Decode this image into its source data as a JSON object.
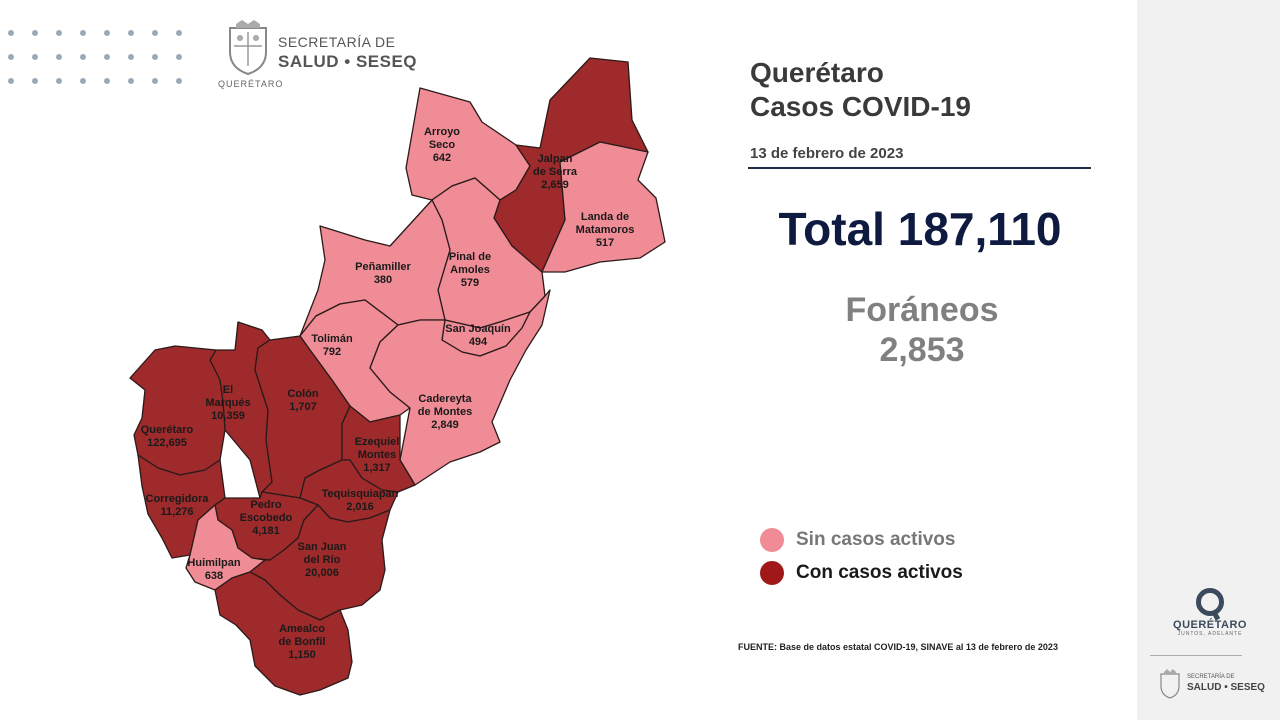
{
  "header": {
    "org_line1": "SECRETARÍA DE",
    "org_line2": "SALUD • SESEQ",
    "org_city": "QUERÉTARO"
  },
  "title": {
    "line1": "Querétaro",
    "line2": "Casos COVID-19"
  },
  "date": "13 de febrero de 2023",
  "total_text": "Total 187,110",
  "foraneos": {
    "label": "Foráneos",
    "value": "2,853"
  },
  "legend": [
    {
      "label": "Sin casos activos",
      "color": "#f08c96",
      "text_color": "#777777"
    },
    {
      "label": "Con casos activos",
      "color": "#a01818",
      "text_color": "#1a1a1a"
    }
  ],
  "colors": {
    "inactive": "#f08c96",
    "active": "#9e2a2b"
  },
  "source": "FUENTE: Base de datos estatal COVID-19, SINAVE al 13 de febrero de 2023",
  "footer_logo": {
    "name": "QUERÉTARO",
    "tagline": "JUNTOS, ADELANTE",
    "org": "SALUD • SESEQ",
    "org_top": "SECRETARÍA DE"
  },
  "municipalities": [
    {
      "id": "arroyo-seco",
      "name": "Arroyo Seco",
      "lines": [
        "Arroyo",
        "Seco"
      ],
      "cases": "642",
      "active": false
    },
    {
      "id": "jalpan",
      "name": "Jalpan de Serra",
      "lines": [
        "Jalpan",
        "de Serra"
      ],
      "cases": "2,659",
      "active": true
    },
    {
      "id": "landa",
      "name": "Landa de Matamoros",
      "lines": [
        "Landa de",
        "Matamoros"
      ],
      "cases": "517",
      "active": false
    },
    {
      "id": "pinal",
      "name": "Pinal de Amoles",
      "lines": [
        "Pinal de",
        "Amoles"
      ],
      "cases": "579",
      "active": false
    },
    {
      "id": "penamiller",
      "name": "Peñamiller",
      "lines": [
        "Peñamiller"
      ],
      "cases": "380",
      "active": false
    },
    {
      "id": "san-joaquin",
      "name": "San Joaquín",
      "lines": [
        "San Joaquín"
      ],
      "cases": "494",
      "active": false
    },
    {
      "id": "toliman",
      "name": "Tolimán",
      "lines": [
        "Tolimán"
      ],
      "cases": "792",
      "active": false
    },
    {
      "id": "cadereyta",
      "name": "Cadereyta de Montes",
      "lines": [
        "Cadereyta",
        "de Montes"
      ],
      "cases": "2,849",
      "active": false
    },
    {
      "id": "el-marques",
      "name": "El Marqués",
      "lines": [
        "El",
        "Marqués"
      ],
      "cases": "10,359",
      "active": true
    },
    {
      "id": "colon",
      "name": "Colón",
      "lines": [
        "Colón"
      ],
      "cases": "1,707",
      "active": true
    },
    {
      "id": "queretaro",
      "name": "Querétaro",
      "lines": [
        "Querétaro"
      ],
      "cases": "122,695",
      "active": true
    },
    {
      "id": "ezequiel",
      "name": "Ezequiel Montes",
      "lines": [
        "Ezequiel",
        "Montes"
      ],
      "cases": "1,317",
      "active": true
    },
    {
      "id": "corregidora",
      "name": "Corregidora",
      "lines": [
        "Corregidora"
      ],
      "cases": "11,276",
      "active": true
    },
    {
      "id": "tequisquiapan",
      "name": "Tequisquiapan",
      "lines": [
        "Tequisquiapan"
      ],
      "cases": "2,016",
      "active": true
    },
    {
      "id": "pedro-escobedo",
      "name": "Pedro Escobedo",
      "lines": [
        "Pedro",
        "Escobedo"
      ],
      "cases": "4,181",
      "active": true
    },
    {
      "id": "huimilpan",
      "name": "Huimilpan",
      "lines": [
        "Huimilpan"
      ],
      "cases": "638",
      "active": false
    },
    {
      "id": "san-juan",
      "name": "San Juan del Río",
      "lines": [
        "San Juan",
        "del Río"
      ],
      "cases": "20,006",
      "active": true
    },
    {
      "id": "amealco",
      "name": "Amealco de Bonfil",
      "lines": [
        "Amealco",
        "de Bonfil"
      ],
      "cases": "1,150",
      "active": true
    }
  ]
}
